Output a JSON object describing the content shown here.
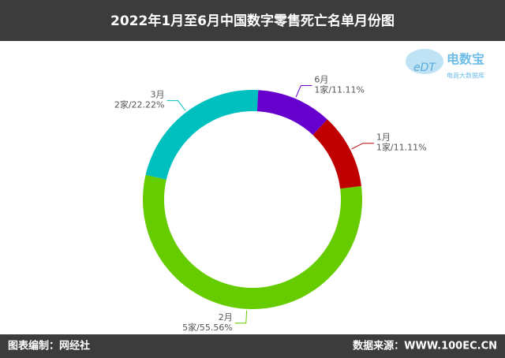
{
  "chart_data": {
    "type": "donut",
    "title": "2022年1月至6月中国数字零售死亡名单月份图",
    "categories": [
      "1月",
      "2月",
      "3月",
      "6月"
    ],
    "values": [
      1,
      5,
      2,
      1
    ],
    "value_labels": [
      "1家/11.11%",
      "5家/55.56%",
      "2家/22.22%",
      "1家/11.11%"
    ],
    "colors": [
      "#c00000",
      "#66cc00",
      "#00bfbf",
      "#6600cc"
    ],
    "footer_left": "图表编制：网经社",
    "footer_right": "数据来源：WWW.100EC.CN",
    "logo": {
      "name": "电数宝",
      "tagline": "电商大数据库"
    }
  }
}
